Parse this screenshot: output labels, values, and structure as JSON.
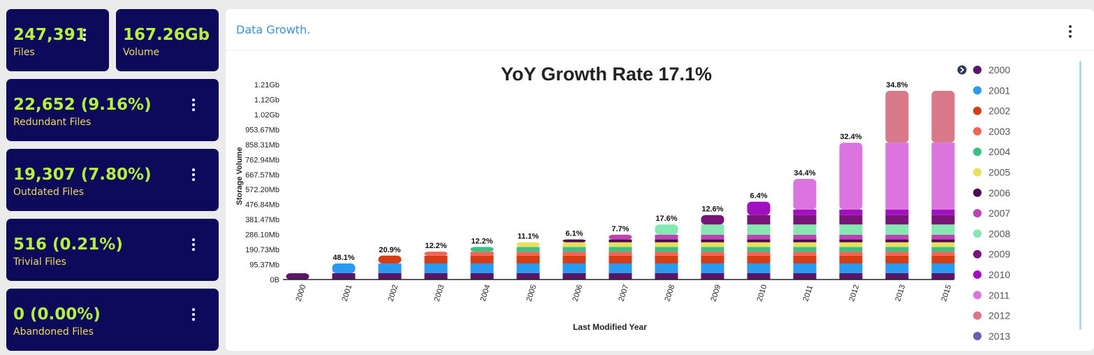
{
  "cards": [
    {
      "value": "247,391",
      "label": "Files"
    },
    {
      "value": "167.26Gb",
      "label": "Volume"
    },
    {
      "value": "22,652 (9.16%)",
      "label": "Redundant Files"
    },
    {
      "value": "19,307 (7.80%)",
      "label": "Outdated Files"
    },
    {
      "value": "516 (0.21%)",
      "label": "Trivial Files"
    },
    {
      "value": "0 (0.00%)",
      "label": "Abandoned Files"
    }
  ],
  "panel": {
    "title": "Data Growth."
  },
  "colors": {
    "card_bg": "#0d0a5c",
    "card_value": "#b6f23a",
    "card_label": "#f0dc58",
    "series": {
      "2000": "#5a1468",
      "2001": "#2a9af0",
      "2002": "#d63d14",
      "2003": "#f06458",
      "2004": "#3cbf84",
      "2005": "#e8e05a",
      "2006": "#4c0b4c",
      "2007": "#c040b8",
      "2008": "#84e8b0",
      "2009": "#7a1478",
      "2010": "#a010c0",
      "2011": "#dc74e0",
      "2012": "#d87888",
      "2013": "#6c5cb8"
    }
  },
  "chart_data": {
    "type": "bar",
    "stacked": true,
    "title": "YoY Growth Rate 17.1%",
    "xlabel": "Last Modified Year",
    "ylabel": "Storage Volume",
    "yticks": [
      "0B",
      "95.37Mb",
      "190.73Mb",
      "286.10Mb",
      "381.47Mb",
      "476.84Mb",
      "572.20Mb",
      "667.57Mb",
      "762.94Mb",
      "858.31Mb",
      "953.67Mb",
      "1.02Gb",
      "1.12Gb",
      "1.21Gb"
    ],
    "ytick_values_mb": [
      0,
      95.37,
      190.73,
      286.1,
      381.47,
      476.84,
      572.2,
      667.57,
      762.94,
      858.31,
      953.67,
      1049.04,
      1144.41,
      1239.78
    ],
    "ylim_mb": [
      0,
      1239.78
    ],
    "categories": [
      "2000",
      "2001",
      "2002",
      "2003",
      "2004",
      "2005",
      "2006",
      "2007",
      "2008",
      "2009",
      "2010",
      "2011",
      "2012",
      "2013",
      "2015"
    ],
    "growth_labels": [
      "",
      "48.1%",
      "20.9%",
      "12.2%",
      "12.2%",
      "11.1%",
      "6.1%",
      "7.7%",
      "17.6%",
      "12.6%",
      "6.4%",
      "34.4%",
      "32.4%",
      "34.8%",
      ""
    ],
    "legend_position": "right",
    "legend": [
      "2000",
      "2001",
      "2002",
      "2003",
      "2004",
      "2005",
      "2006",
      "2007",
      "2008",
      "2009",
      "2010",
      "2011",
      "2012",
      "2013"
    ],
    "series": [
      {
        "name": "2000",
        "values": [
          40,
          40,
          40,
          40,
          40,
          40,
          40,
          40,
          40,
          40,
          40,
          40,
          40,
          40,
          40
        ]
      },
      {
        "name": "2001",
        "values": [
          0,
          62,
          62,
          62,
          62,
          62,
          62,
          62,
          62,
          62,
          62,
          62,
          62,
          62,
          62
        ]
      },
      {
        "name": "2002",
        "values": [
          0,
          0,
          50,
          50,
          50,
          50,
          50,
          50,
          50,
          50,
          50,
          50,
          50,
          50,
          50
        ]
      },
      {
        "name": "2003",
        "values": [
          0,
          0,
          0,
          25,
          25,
          25,
          25,
          25,
          25,
          25,
          25,
          25,
          25,
          25,
          25
        ]
      },
      {
        "name": "2004",
        "values": [
          0,
          0,
          0,
          0,
          30,
          30,
          30,
          30,
          30,
          30,
          30,
          30,
          30,
          30,
          30
        ]
      },
      {
        "name": "2005",
        "values": [
          0,
          0,
          0,
          0,
          0,
          30,
          30,
          30,
          30,
          30,
          30,
          30,
          30,
          30,
          30
        ]
      },
      {
        "name": "2006",
        "values": [
          0,
          0,
          0,
          0,
          0,
          0,
          18,
          18,
          18,
          18,
          18,
          18,
          18,
          18,
          18
        ]
      },
      {
        "name": "2007",
        "values": [
          0,
          0,
          0,
          0,
          0,
          0,
          0,
          30,
          30,
          30,
          30,
          30,
          30,
          30,
          30
        ]
      },
      {
        "name": "2008",
        "values": [
          0,
          0,
          0,
          0,
          0,
          0,
          0,
          0,
          65,
          65,
          65,
          65,
          65,
          65,
          65
        ]
      },
      {
        "name": "2009",
        "values": [
          0,
          0,
          0,
          0,
          0,
          0,
          0,
          0,
          0,
          60,
          60,
          60,
          60,
          60,
          60
        ]
      },
      {
        "name": "2010",
        "values": [
          0,
          0,
          0,
          0,
          0,
          0,
          0,
          0,
          0,
          0,
          85,
          35,
          35,
          35,
          35
        ]
      },
      {
        "name": "2011",
        "values": [
          0,
          0,
          0,
          0,
          0,
          0,
          0,
          0,
          0,
          0,
          0,
          195,
          425,
          425,
          425
        ]
      },
      {
        "name": "2012",
        "values": [
          0,
          0,
          0,
          0,
          0,
          0,
          0,
          0,
          0,
          0,
          0,
          0,
          0,
          330,
          330
        ]
      },
      {
        "name": "2013",
        "values": [
          0,
          0,
          0,
          0,
          0,
          0,
          0,
          0,
          0,
          0,
          0,
          0,
          0,
          0,
          0
        ]
      }
    ]
  }
}
